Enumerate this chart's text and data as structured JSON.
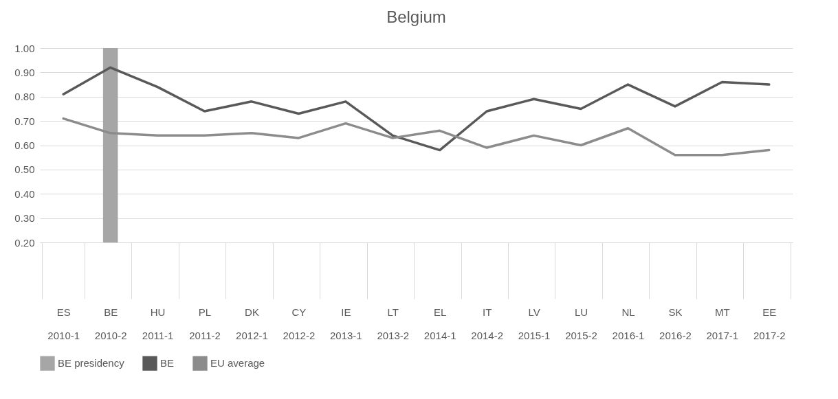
{
  "chart_data": {
    "type": "line",
    "title": "Belgium",
    "categories": [
      "ES\n2010-1",
      "BE\n2010-2",
      "HU\n2011-1",
      "PL\n2011-2",
      "DK\n2012-1",
      "CY\n2012-2",
      "IE\n2013-1",
      "LT\n2013-2",
      "EL\n2014-1",
      "IT\n2014-2",
      "LV\n2015-1",
      "LU\n2015-2",
      "NL\n2016-1",
      "SK\n2016-2",
      "MT\n2017-1",
      "EE\n2017-2"
    ],
    "series": [
      {
        "name": "BE presidency",
        "type": "bar",
        "color": "#a6a6a6",
        "values": [
          null,
          1.0,
          null,
          null,
          null,
          null,
          null,
          null,
          null,
          null,
          null,
          null,
          null,
          null,
          null,
          null
        ]
      },
      {
        "name": "BE",
        "color": "#595959",
        "values": [
          0.81,
          0.92,
          0.84,
          0.74,
          0.78,
          0.73,
          0.78,
          0.64,
          0.58,
          0.74,
          0.79,
          0.75,
          0.85,
          0.76,
          0.86,
          0.85
        ]
      },
      {
        "name": "EU average",
        "color": "#8c8c8c",
        "values": [
          0.71,
          0.65,
          0.64,
          0.64,
          0.65,
          0.63,
          0.69,
          0.63,
          0.66,
          0.59,
          0.64,
          0.6,
          0.67,
          0.56,
          0.56,
          0.58
        ]
      }
    ],
    "ylim": [
      0.2,
      1.0
    ],
    "yticks": [
      {
        "value": 0.2,
        "label": "0.20"
      },
      {
        "value": 0.3,
        "label": "0.30"
      },
      {
        "value": 0.4,
        "label": "0.40"
      },
      {
        "value": 0.5,
        "label": "0.50"
      },
      {
        "value": 0.6,
        "label": "0.60"
      },
      {
        "value": 0.7,
        "label": "0.70"
      },
      {
        "value": 0.8,
        "label": "0.80"
      },
      {
        "value": 0.9,
        "label": "0.90"
      },
      {
        "value": 1.0,
        "label": "1.00"
      }
    ],
    "grid": "y",
    "legend": "bottom"
  }
}
